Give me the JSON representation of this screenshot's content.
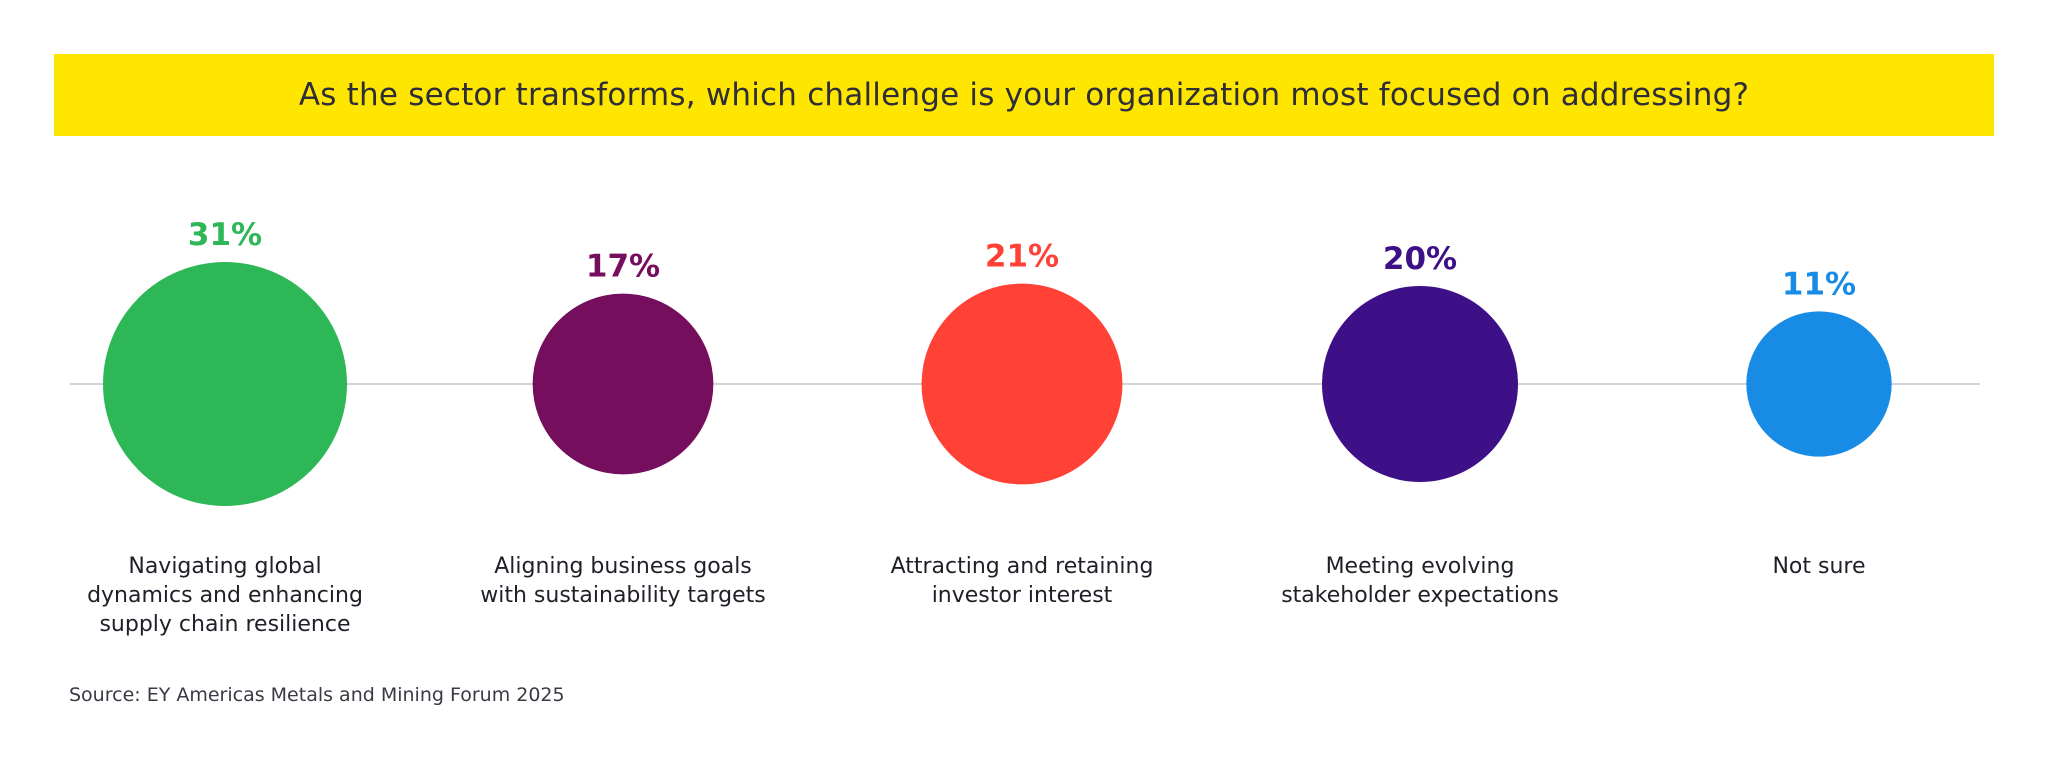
{
  "title": "As the sector transforms, which challenge is your organization most focused on addressing?",
  "source": "Source: EY Americas Metals and Mining Forum 2025",
  "chart_data": {
    "type": "bubble",
    "unit": "%",
    "categories": [
      [
        "Navigating global",
        "dynamics and enhancing",
        "supply chain resilience"
      ],
      [
        "Aligning business goals",
        "with sustainability targets"
      ],
      [
        "Attracting and retaining",
        "investor interest"
      ],
      [
        "Meeting evolving",
        "stakeholder expectations"
      ],
      [
        "Not sure"
      ]
    ],
    "values": [
      31,
      17,
      21,
      20,
      11
    ],
    "colors": [
      "#2db757",
      "#750e5c",
      "#ff4136",
      "#3d1087",
      "#188ce5"
    ],
    "grid": false,
    "legend": "none"
  }
}
